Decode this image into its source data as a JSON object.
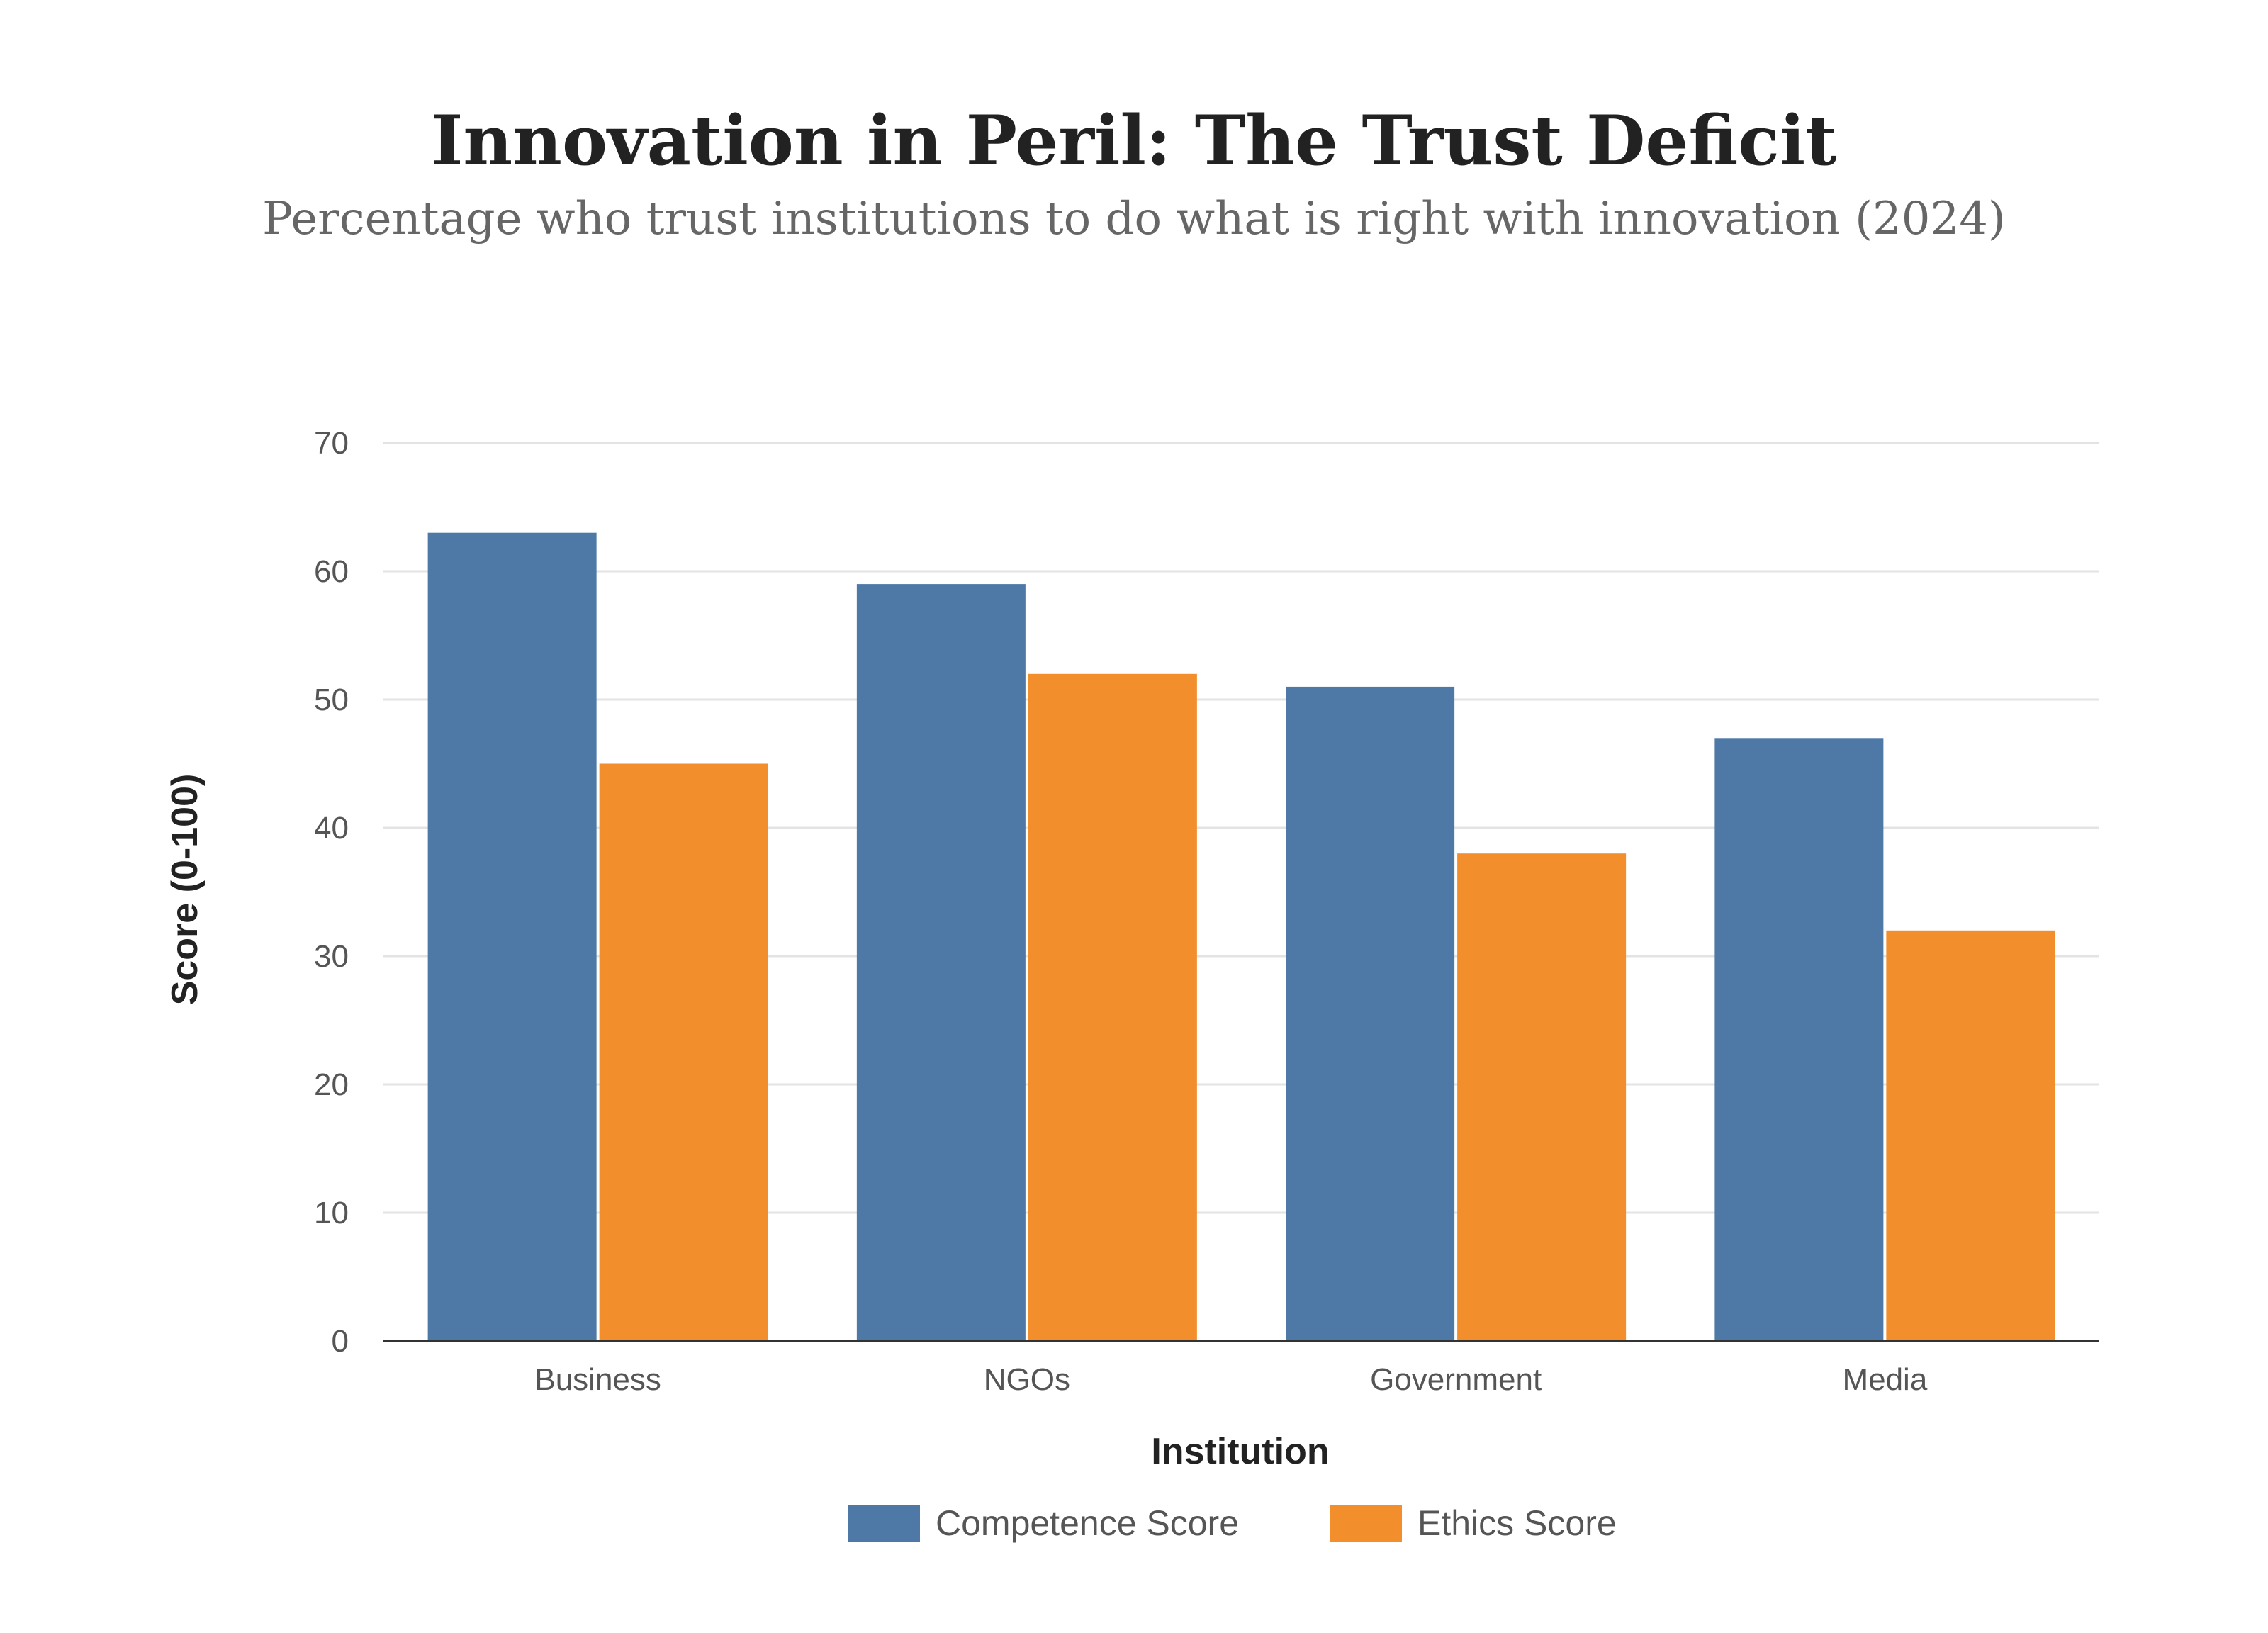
{
  "chart_data": {
    "type": "bar",
    "title": "Innovation in Peril: The Trust Deficit",
    "subtitle": "Percentage who trust institutions to do what is right with innovation (2024)",
    "xlabel": "Institution",
    "ylabel": "Score (0-100)",
    "categories": [
      "Business",
      "NGOs",
      "Government",
      "Media"
    ],
    "series": [
      {
        "name": "Competence Score",
        "color": "#4e79a7",
        "values": [
          63,
          59,
          51,
          47
        ]
      },
      {
        "name": "Ethics Score",
        "color": "#f28e2b",
        "values": [
          45,
          52,
          38,
          32
        ]
      }
    ],
    "ylim": [
      0,
      70
    ],
    "yticks": [
      0,
      10,
      20,
      30,
      40,
      50,
      60,
      70
    ],
    "grid": true,
    "legend": "bottom-center"
  }
}
